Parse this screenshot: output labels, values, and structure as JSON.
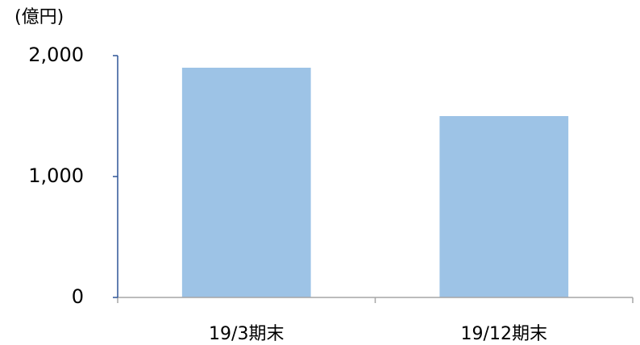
{
  "chart_data": {
    "type": "bar",
    "y_unit": "(億円)",
    "categories": [
      "19/3期末",
      "19/12期末"
    ],
    "values": [
      1900,
      1500
    ],
    "color": "#9dc3e6",
    "ylim": [
      0,
      2000
    ],
    "yticks": [
      0,
      {
        "value": 1000,
        "label": "1,000"
      },
      {
        "value": 2000,
        "label": "2,000"
      }
    ],
    "grid": false
  }
}
